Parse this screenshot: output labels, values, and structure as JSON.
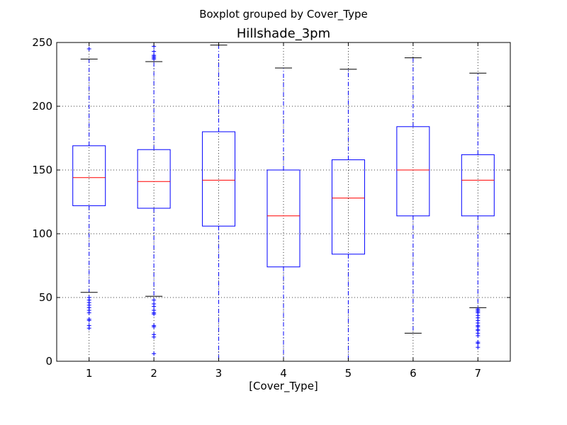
{
  "chart_data": {
    "type": "boxplot",
    "suptitle": "Boxplot grouped by Cover_Type",
    "title": "Hillshade_3pm",
    "xlabel": "[Cover_Type]",
    "ylabel": "",
    "ylim": [
      0,
      250
    ],
    "yticks": [
      0,
      50,
      100,
      150,
      200,
      250
    ],
    "grid": true,
    "colors": {
      "box": "#0000ff",
      "median": "#ff0000",
      "whisker": "#0000ff",
      "cap": "#000000",
      "flier": "#0000ff"
    },
    "categories": [
      "1",
      "2",
      "3",
      "4",
      "5",
      "6",
      "7"
    ],
    "boxes": [
      {
        "category": "1",
        "whisker_low": 54,
        "q1": 122,
        "median": 144,
        "q3": 169,
        "whisker_high": 237,
        "fliers": [
          26,
          28,
          32,
          33,
          38,
          40,
          42,
          44,
          46,
          48,
          50,
          245
        ]
      },
      {
        "category": "2",
        "whisker_low": 51,
        "q1": 120,
        "median": 141,
        "q3": 166,
        "whisker_high": 235,
        "fliers": [
          6,
          19,
          21,
          27,
          28,
          37,
          38,
          40,
          43,
          45,
          48,
          237,
          238,
          239,
          240,
          243,
          247
        ]
      },
      {
        "category": "3",
        "whisker_low": 0,
        "q1": 106,
        "median": 142,
        "q3": 180,
        "whisker_high": 248,
        "fliers": []
      },
      {
        "category": "4",
        "whisker_low": 0,
        "q1": 74,
        "median": 114,
        "q3": 150,
        "whisker_high": 230,
        "fliers": []
      },
      {
        "category": "5",
        "whisker_low": 0,
        "q1": 84,
        "median": 128,
        "q3": 158,
        "whisker_high": 229,
        "fliers": []
      },
      {
        "category": "6",
        "whisker_low": 22,
        "q1": 114,
        "median": 150,
        "q3": 184,
        "whisker_high": 238,
        "fliers": []
      },
      {
        "category": "7",
        "whisker_low": 42,
        "q1": 114,
        "median": 142,
        "q3": 162,
        "whisker_high": 226,
        "fliers": [
          11,
          14,
          15,
          20,
          22,
          24,
          25,
          27,
          28,
          30,
          32,
          34,
          36,
          38,
          39,
          40,
          41
        ]
      }
    ]
  }
}
